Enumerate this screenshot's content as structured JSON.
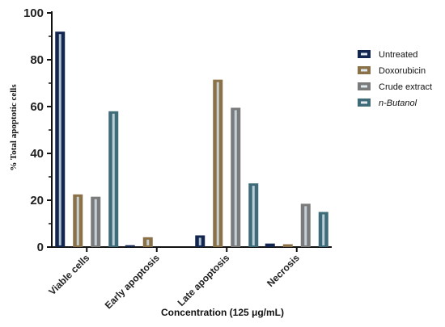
{
  "chart_data": {
    "type": "bar",
    "categories": [
      "Viable cells",
      "Early apoptosis",
      "Late apoptosis",
      "Necrosis"
    ],
    "series": [
      {
        "name": "Untreated",
        "color": "#13264f",
        "values": [
          92,
          0.8,
          5,
          1.5
        ]
      },
      {
        "name": "Doxorubicin",
        "color": "#8b7148",
        "values": [
          22.5,
          4.2,
          71.5,
          1.2
        ]
      },
      {
        "name": "Crude extract",
        "color": "#7b7b7b",
        "values": [
          21.5,
          0,
          59.5,
          18.5
        ]
      },
      {
        "name": "n-Butanol",
        "color": "#3f6b79",
        "values": [
          58,
          0,
          27.2,
          15
        ]
      }
    ],
    "ylabel": "% Total apoptotic cells",
    "xlabel": "Concentration (125 μg/mL)",
    "ylim": [
      0,
      100
    ],
    "yticks": [
      0,
      20,
      40,
      60,
      80,
      100
    ],
    "grid": false,
    "legend_position": "right"
  }
}
